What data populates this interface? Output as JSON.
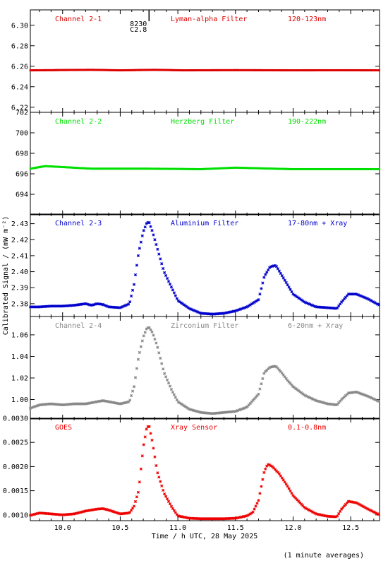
{
  "chart_data": {
    "type": "scatter",
    "xlabel": "Time / h UTC, 28 May 2025",
    "ylabel": "Calibrated Signal / (mW m⁻²)",
    "footer": "(1 minute averages)",
    "xlim": [
      9.72,
      12.75
    ],
    "x_ticks": [
      "10.0",
      "10.5",
      "11.0",
      "11.5",
      "12.0",
      "12.5"
    ],
    "flare_marker": {
      "x": 10.75,
      "label_line1": "8230",
      "label_line2": "C2.8"
    },
    "panels": [
      {
        "name": "Channel 2-1",
        "filter": "Lyman-alpha Filter",
        "band": "120-123nm",
        "color": "#dd0000",
        "ylim": [
          6.215,
          6.315
        ],
        "y_ticks": [
          "6.22",
          "6.24",
          "6.26",
          "6.28",
          "6.30"
        ],
        "series": {
          "x": [
            9.72,
            10.25,
            10.5,
            10.8,
            11.05,
            11.5,
            12.0,
            12.4,
            12.75
          ],
          "y": [
            6.256,
            6.2565,
            6.256,
            6.2565,
            6.256,
            6.2562,
            6.256,
            6.2561,
            6.256
          ]
        }
      },
      {
        "name": "Channel 2-2",
        "filter": "Herzberg Filter",
        "band": "190-222nm",
        "color": "#00e000",
        "ylim": [
          692,
          702
        ],
        "y_ticks": [
          "694",
          "696",
          "698",
          "700",
          "702"
        ],
        "series": {
          "x": [
            9.72,
            9.85,
            10.25,
            10.75,
            11.2,
            11.5,
            12.0,
            12.4,
            12.75
          ],
          "y": [
            696.5,
            696.75,
            696.5,
            696.5,
            696.45,
            696.6,
            696.45,
            696.45,
            696.45
          ]
        }
      },
      {
        "name": "Channel 2-3",
        "filter": "Aluminium Filter",
        "band": "17-80nm + Xray",
        "color": "#0000cc",
        "ylim": [
          2.372,
          2.436
        ],
        "y_ticks": [
          "2.38",
          "2.39",
          "2.40",
          "2.41",
          "2.42",
          "2.43"
        ],
        "series": {
          "x": [
            9.72,
            9.8,
            9.9,
            10.0,
            10.1,
            10.2,
            10.25,
            10.3,
            10.35,
            10.4,
            10.5,
            10.58,
            10.62,
            10.66,
            10.7,
            10.73,
            10.75,
            10.78,
            10.82,
            10.88,
            10.95,
            11.0,
            11.1,
            11.2,
            11.3,
            11.4,
            11.5,
            11.6,
            11.7,
            11.75,
            11.8,
            11.85,
            11.9,
            11.95,
            12.0,
            12.1,
            12.2,
            12.3,
            12.38,
            12.42,
            12.48,
            12.55,
            12.65,
            12.75
          ],
          "y": [
            2.378,
            2.378,
            2.3785,
            2.3785,
            2.379,
            2.38,
            2.379,
            2.38,
            2.3795,
            2.378,
            2.3775,
            2.38,
            2.392,
            2.412,
            2.425,
            2.4305,
            2.431,
            2.425,
            2.415,
            2.4,
            2.3895,
            2.382,
            2.377,
            2.374,
            2.3735,
            2.374,
            2.3755,
            2.378,
            2.3825,
            2.397,
            2.403,
            2.404,
            2.398,
            2.392,
            2.386,
            2.381,
            2.378,
            2.3775,
            2.377,
            2.381,
            2.386,
            2.386,
            2.383,
            2.379
          ]
        }
      },
      {
        "name": "Channel 2-4",
        "filter": "Zirconium Filter",
        "band": "6-20nm + Xray",
        "color": "#888888",
        "ylim": [
          0.982,
          1.077
        ],
        "y_ticks": [
          "1.00",
          "1.02",
          "1.04",
          "1.06"
        ],
        "series": {
          "x": [
            9.72,
            9.8,
            9.9,
            10.0,
            10.1,
            10.2,
            10.3,
            10.35,
            10.4,
            10.5,
            10.58,
            10.62,
            10.66,
            10.7,
            10.73,
            10.75,
            10.78,
            10.82,
            10.88,
            10.95,
            11.0,
            11.1,
            11.2,
            11.3,
            11.4,
            11.5,
            11.6,
            11.7,
            11.75,
            11.8,
            11.85,
            11.9,
            11.95,
            12.0,
            12.1,
            12.2,
            12.3,
            12.38,
            12.42,
            12.48,
            12.55,
            12.65,
            12.75
          ],
          "y": [
            0.992,
            0.995,
            0.996,
            0.995,
            0.996,
            0.996,
            0.998,
            0.999,
            0.998,
            0.996,
            0.998,
            1.012,
            1.04,
            1.058,
            1.066,
            1.067,
            1.062,
            1.05,
            1.025,
            1.008,
            0.998,
            0.991,
            0.988,
            0.987,
            0.988,
            0.989,
            0.993,
            1.005,
            1.025,
            1.03,
            1.031,
            1.025,
            1.018,
            1.012,
            1.004,
            0.999,
            0.996,
            0.995,
            1.0,
            1.006,
            1.007,
            1.003,
            0.998
          ]
        }
      },
      {
        "name": "GOES",
        "filter": "Xray Sensor",
        "band": "0.1-0.8nm",
        "color": "#ee0000",
        "ylim": [
          0.00088,
          0.003
        ],
        "y_ticks": [
          "0.0010",
          "0.0015",
          "0.0020",
          "0.0025",
          "0.0030"
        ],
        "series": {
          "x": [
            9.72,
            9.8,
            9.9,
            10.0,
            10.1,
            10.2,
            10.3,
            10.35,
            10.4,
            10.5,
            10.58,
            10.62,
            10.66,
            10.7,
            10.73,
            10.75,
            10.78,
            10.82,
            10.88,
            10.95,
            11.0,
            11.1,
            11.2,
            11.3,
            11.4,
            11.5,
            11.6,
            11.65,
            11.7,
            11.75,
            11.78,
            11.82,
            11.88,
            11.95,
            12.0,
            12.1,
            12.2,
            12.3,
            12.38,
            12.42,
            12.48,
            12.55,
            12.65,
            12.75
          ],
          "y": [
            0.00099,
            0.00104,
            0.00102,
            0.001,
            0.00102,
            0.00108,
            0.00112,
            0.00113,
            0.0011,
            0.00102,
            0.00104,
            0.00118,
            0.0015,
            0.0024,
            0.0028,
            0.00285,
            0.0025,
            0.0019,
            0.00145,
            0.00115,
            0.00098,
            0.00093,
            0.00092,
            0.00092,
            0.00092,
            0.00093,
            0.00098,
            0.00105,
            0.0013,
            0.0019,
            0.00205,
            0.002,
            0.00185,
            0.0016,
            0.0014,
            0.00115,
            0.00102,
            0.00097,
            0.00096,
            0.00112,
            0.00128,
            0.00125,
            0.00112,
            0.001
          ]
        }
      }
    ]
  }
}
